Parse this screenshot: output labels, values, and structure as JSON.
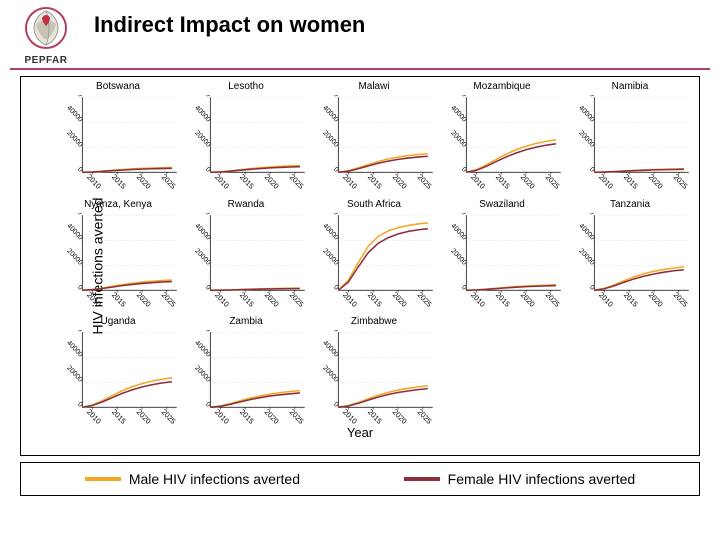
{
  "header": {
    "title": "Indirect Impact on women",
    "logo_label": "PEPFAR"
  },
  "axes": {
    "y_label": "HIV infections averted",
    "x_label": "Year"
  },
  "legend": [
    {
      "label": "Male HIV infections averted",
      "color": "#f5a623"
    },
    {
      "label": "Female HIV infections averted",
      "color": "#8b2e3a"
    }
  ],
  "chart_style": {
    "grid_color": "#d0d0d0",
    "axis_color": "#000000",
    "line_width": 1.4,
    "panel_bg": "#ffffff",
    "title_fontsize": 10,
    "x_ticks": [
      2010,
      2015,
      2020,
      2025
    ],
    "x_tick_rotation": 45,
    "y_tick_rotation": 45
  },
  "x_domain": [
    2008,
    2027
  ],
  "x_series": [
    2008,
    2010,
    2012,
    2014,
    2016,
    2018,
    2020,
    2022,
    2024,
    2026
  ],
  "panels": [
    {
      "title": "Botswana",
      "ylim": [
        0,
        60000
      ],
      "yticks": [
        0,
        20000,
        40000,
        60000
      ],
      "male": [
        0,
        300,
        900,
        1600,
        2200,
        2700,
        3100,
        3400,
        3600,
        3800
      ],
      "female": [
        0,
        200,
        700,
        1300,
        1800,
        2200,
        2600,
        2800,
        3000,
        3200
      ]
    },
    {
      "title": "Lesotho",
      "ylim": [
        0,
        60000
      ],
      "yticks": [
        0,
        20000,
        40000,
        60000
      ],
      "male": [
        0,
        400,
        1100,
        2000,
        2900,
        3600,
        4200,
        4700,
        5100,
        5400
      ],
      "female": [
        0,
        300,
        900,
        1700,
        2400,
        3000,
        3500,
        3900,
        4200,
        4500
      ]
    },
    {
      "title": "Malawi",
      "ylim": [
        0,
        60000
      ],
      "yticks": [
        0,
        20000,
        40000,
        60000
      ],
      "male": [
        0,
        1200,
        3500,
        6200,
        8600,
        10600,
        12100,
        13300,
        14200,
        14900
      ],
      "female": [
        0,
        900,
        2800,
        5000,
        7200,
        8900,
        10300,
        11400,
        12200,
        12800
      ]
    },
    {
      "title": "Mozambique",
      "ylim": [
        0,
        60000
      ],
      "yticks": [
        0,
        20000,
        40000,
        60000
      ],
      "male": [
        0,
        2000,
        5800,
        10300,
        14500,
        18000,
        20800,
        23000,
        24700,
        26000
      ],
      "female": [
        0,
        1600,
        4700,
        8600,
        12300,
        15400,
        18000,
        20000,
        21600,
        22800
      ]
    },
    {
      "title": "Namibia",
      "ylim": [
        0,
        60000
      ],
      "yticks": [
        0,
        20000,
        40000,
        60000
      ],
      "male": [
        0,
        200,
        600,
        1100,
        1500,
        1900,
        2200,
        2400,
        2600,
        2800
      ],
      "female": [
        0,
        150,
        500,
        900,
        1300,
        1600,
        1900,
        2100,
        2300,
        2400
      ]
    },
    {
      "title": "Nyanza, Kenya",
      "ylim": [
        0,
        60000
      ],
      "yticks": [
        0,
        20000,
        40000,
        60000
      ],
      "male": [
        0,
        600,
        1800,
        3200,
        4500,
        5600,
        6500,
        7200,
        7800,
        8200
      ],
      "female": [
        0,
        500,
        1400,
        2600,
        3700,
        4700,
        5500,
        6100,
        6600,
        7000
      ]
    },
    {
      "title": "Rwanda",
      "ylim": [
        0,
        60000
      ],
      "yticks": [
        0,
        20000,
        40000,
        60000
      ],
      "male": [
        0,
        100,
        300,
        600,
        900,
        1100,
        1300,
        1500,
        1600,
        1700
      ],
      "female": [
        0,
        80,
        250,
        500,
        750,
        950,
        1100,
        1250,
        1350,
        1450
      ]
    },
    {
      "title": "South Africa",
      "ylim": [
        0,
        60000
      ],
      "yticks": [
        0,
        20000,
        40000,
        60000
      ],
      "male": [
        0,
        8000,
        22000,
        35000,
        43000,
        47500,
        50000,
        51800,
        53000,
        53800
      ],
      "female": [
        0,
        6500,
        18500,
        30000,
        37500,
        42000,
        45000,
        47000,
        48300,
        49200
      ]
    },
    {
      "title": "Swaziland",
      "ylim": [
        0,
        60000
      ],
      "yticks": [
        0,
        20000,
        40000,
        60000
      ],
      "male": [
        0,
        300,
        900,
        1600,
        2300,
        2900,
        3400,
        3800,
        4100,
        4400
      ],
      "female": [
        0,
        250,
        750,
        1350,
        1950,
        2500,
        2900,
        3250,
        3550,
        3800
      ]
    },
    {
      "title": "Tanzania",
      "ylim": [
        0,
        60000
      ],
      "yticks": [
        0,
        20000,
        40000,
        60000
      ],
      "male": [
        0,
        1500,
        4300,
        7700,
        10800,
        13300,
        15200,
        16700,
        17800,
        18700
      ],
      "female": [
        0,
        1200,
        3500,
        6400,
        9100,
        11300,
        13100,
        14500,
        15600,
        16400
      ]
    },
    {
      "title": "Uganda",
      "ylim": [
        0,
        60000
      ],
      "yticks": [
        0,
        20000,
        40000,
        60000
      ],
      "male": [
        0,
        1800,
        5200,
        9300,
        13200,
        16400,
        18900,
        20900,
        22400,
        23600
      ],
      "female": [
        0,
        1400,
        4200,
        7700,
        11100,
        13900,
        16200,
        18000,
        19400,
        20500
      ]
    },
    {
      "title": "Zambia",
      "ylim": [
        0,
        60000
      ],
      "yticks": [
        0,
        20000,
        40000,
        60000
      ],
      "male": [
        0,
        1000,
        2900,
        5200,
        7300,
        9100,
        10500,
        11700,
        12600,
        13300
      ],
      "female": [
        0,
        800,
        2400,
        4300,
        6200,
        7700,
        9000,
        10000,
        10800,
        11500
      ]
    },
    {
      "title": "Zimbabwe",
      "ylim": [
        0,
        60000
      ],
      "yticks": [
        0,
        20000,
        40000,
        60000
      ],
      "male": [
        0,
        1300,
        3800,
        6800,
        9600,
        11900,
        13800,
        15200,
        16300,
        17200
      ],
      "female": [
        0,
        1100,
        3100,
        5700,
        8100,
        10200,
        11800,
        13100,
        14100,
        14900
      ]
    }
  ]
}
